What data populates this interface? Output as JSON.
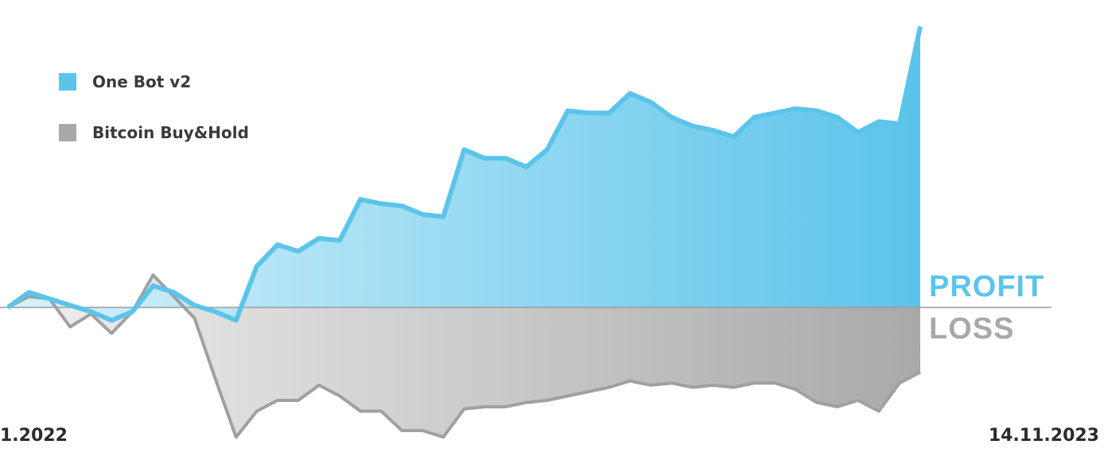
{
  "legend": [
    {
      "label": "One Bot v2",
      "color": "#5bc4ea"
    },
    {
      "label": "Bitcoin Buy&Hold",
      "color": "#a8a8a8"
    }
  ],
  "zones": {
    "profit": "PROFIT",
    "loss": "LOSS",
    "profit_color": "#5bc4ea",
    "loss_color": "#a8a8a8"
  },
  "dates": {
    "start": "1.2022",
    "end": "14.11.2023"
  },
  "chart_data": {
    "type": "area",
    "baseline": 0,
    "yrange": [
      -0.6,
      1.4
    ],
    "series": [
      {
        "name": "One Bot v2",
        "color": "#5bc4ea",
        "values": [
          0.0,
          0.07,
          0.04,
          0.01,
          -0.02,
          -0.06,
          -0.02,
          0.1,
          0.07,
          0.01,
          -0.02,
          -0.06,
          0.19,
          0.29,
          0.26,
          0.32,
          0.31,
          0.5,
          0.48,
          0.47,
          0.43,
          0.42,
          0.73,
          0.69,
          0.69,
          0.65,
          0.73,
          0.91,
          0.9,
          0.9,
          0.99,
          0.95,
          0.88,
          0.84,
          0.82,
          0.79,
          0.88,
          0.9,
          0.92,
          0.91,
          0.88,
          0.81,
          0.86,
          0.85,
          1.3
        ]
      },
      {
        "name": "Bitcoin Buy&Hold",
        "color": "#a8a8a8",
        "values": [
          0.0,
          0.05,
          0.04,
          -0.09,
          -0.03,
          -0.12,
          -0.02,
          0.15,
          0.05,
          -0.05,
          -0.33,
          -0.6,
          -0.48,
          -0.43,
          -0.43,
          -0.36,
          -0.41,
          -0.48,
          -0.48,
          -0.57,
          -0.57,
          -0.6,
          -0.47,
          -0.46,
          -0.46,
          -0.44,
          -0.43,
          -0.41,
          -0.39,
          -0.37,
          -0.34,
          -0.36,
          -0.35,
          -0.37,
          -0.36,
          -0.37,
          -0.35,
          -0.35,
          -0.38,
          -0.44,
          -0.46,
          -0.43,
          -0.48,
          -0.35,
          -0.3
        ]
      }
    ]
  }
}
